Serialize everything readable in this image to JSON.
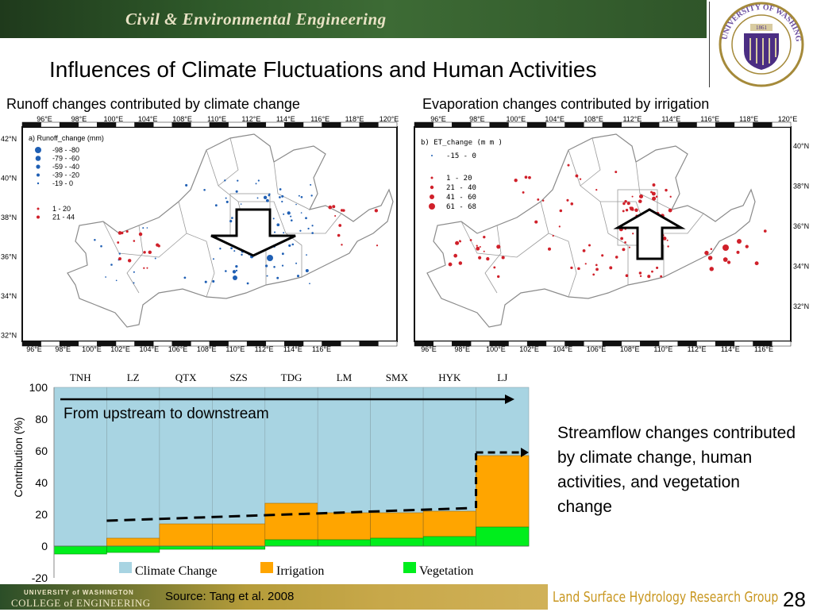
{
  "header": {
    "department": "Civil & Environmental Engineering",
    "seal_text": "UNIVERSITY OF WASHINGTON",
    "seal_year": "1861"
  },
  "slide": {
    "title": "Influences of Climate Fluctuations and Human Activities"
  },
  "maps": {
    "left": {
      "title": "Runoff changes contributed by climate change",
      "panel": "a) Runoff_change (mm)",
      "top_lon": [
        "96°E",
        "98°E",
        "100°E",
        "104°E",
        "108°E",
        "110°E",
        "112°E",
        "114°E",
        "116°E",
        "118°E",
        "120°E"
      ],
      "bottom_lon": [
        "96°E",
        "98°E",
        "100°E",
        "102°E",
        "104°E",
        "106°E",
        "108°E",
        "110°E",
        "112°E",
        "114°E",
        "116°E"
      ],
      "left_lat": [
        "42°N",
        "40°N",
        "38°N",
        "36°N",
        "34°N",
        "32°N"
      ],
      "legend": [
        "-98 - -80",
        "-79 - -60",
        "-59 - -40",
        "-39 - -20",
        "-19 - 0",
        "1 - 20",
        "21 - 44"
      ],
      "neg_color": "#1f5fb4",
      "pos_color": "#d0202a"
    },
    "right": {
      "title": "Evaporation changes contributed by irrigation",
      "panel": "b) ET_change (m m )",
      "top_lon": [
        "96°E",
        "98°E",
        "100°E",
        "104°E",
        "108°E",
        "112°E",
        "114°E",
        "116°E",
        "118°E",
        "120°E"
      ],
      "bottom_lon": [
        "96°E",
        "98°E",
        "100°E",
        "102°E",
        "104°E",
        "106°E",
        "108°E",
        "110°E",
        "112°E",
        "114°E",
        "116°E"
      ],
      "right_lat": [
        "40°N",
        "38°N",
        "36°N",
        "34°N",
        "32°N"
      ],
      "legend": [
        "-15 - 0",
        "1 - 20",
        "21 - 40",
        "41 - 60",
        "61 - 68"
      ],
      "neg_color": "#1f5fb4",
      "pos_color": "#d0202a"
    }
  },
  "chart_data": {
    "type": "bar",
    "categories": [
      "TNH",
      "LZ",
      "QTX",
      "SZS",
      "TDG",
      "LM",
      "SMX",
      "HYK",
      "LJ"
    ],
    "ylabel": "Contribution (%)",
    "ylim": [
      -20,
      100
    ],
    "yticks": [
      "-20",
      "0",
      "20",
      "40",
      "60",
      "80",
      "100"
    ],
    "series": [
      {
        "name": "Climate Change",
        "color": "#a8d4e2",
        "values": [
          100,
          100,
          100,
          100,
          100,
          100,
          100,
          100,
          100
        ]
      },
      {
        "name": "Irrigation",
        "color": "#ffa500",
        "values": [
          0,
          5,
          14,
          14,
          23,
          17,
          16,
          16,
          45
        ]
      },
      {
        "name": "Vegetation",
        "color": "#00ee1c",
        "values": [
          -5,
          -4,
          -2,
          -2,
          4,
          4,
          5,
          6,
          12
        ]
      }
    ],
    "annotation": "From upstream to downstream",
    "legend_position": "bottom"
  },
  "description": "Streamflow changes contributed by climate change, human activities, and vegetation change",
  "footer": {
    "uw_line1": "UNIVERSITY of WASHINGTON",
    "uw_line2": "COLLEGE of ENGINEERING",
    "source": "Source: Tang et al. 2008",
    "lab": "Land Surface Hydrology Research Group",
    "page": "28"
  }
}
